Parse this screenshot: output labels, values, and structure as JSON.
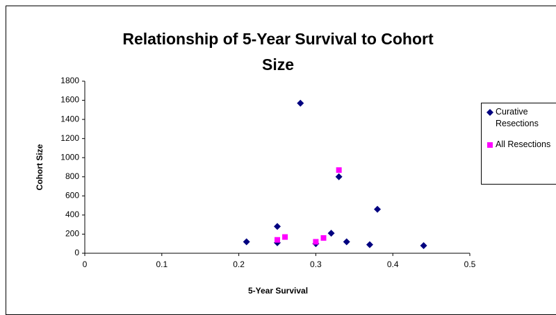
{
  "chart_data": {
    "type": "scatter",
    "title": "Relationship of 5-Year Survival to Cohort Size",
    "x_label": "5-Year Survival",
    "y_label": "Cohort Size",
    "xlim": [
      0,
      0.5
    ],
    "xticks": [
      0,
      0.1,
      0.2,
      0.3,
      0.4,
      0.5
    ],
    "ylim": [
      0,
      1800
    ],
    "yticks": [
      0,
      200,
      400,
      600,
      800,
      1000,
      1200,
      1400,
      1600,
      1800
    ],
    "grid": false,
    "legend": "right",
    "series": [
      {
        "name": "Curative Resections",
        "color": "#000080",
        "marker": "diamond",
        "x": [
          0.21,
          0.25,
          0.25,
          0.28,
          0.3,
          0.32,
          0.33,
          0.34,
          0.37,
          0.38,
          0.44
        ],
        "values": [
          120,
          280,
          110,
          1570,
          100,
          210,
          800,
          120,
          90,
          460,
          80
        ]
      },
      {
        "name": "All Resections",
        "color": "#ff00ff",
        "marker": "square",
        "x": [
          0.25,
          0.26,
          0.3,
          0.31,
          0.33
        ],
        "values": [
          140,
          170,
          120,
          160,
          870
        ]
      }
    ]
  }
}
